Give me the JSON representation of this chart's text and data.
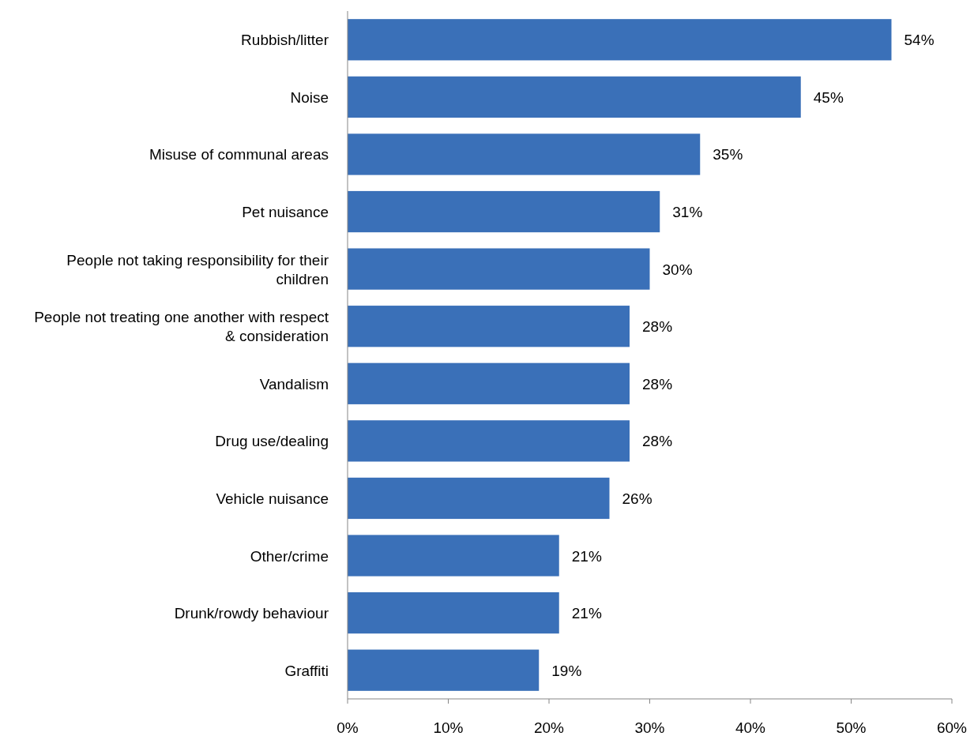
{
  "chart_data": {
    "type": "bar",
    "orientation": "horizontal",
    "categories": [
      "Rubbish/litter",
      "Noise",
      "Misuse of communal areas",
      "Pet nuisance",
      "People not taking responsibility for their children",
      "People not treating one another with respect & consideration",
      "Vandalism",
      "Drug use/dealing",
      "Vehicle nuisance",
      "Other/crime",
      "Drunk/rowdy behaviour",
      "Graffiti"
    ],
    "values": [
      54,
      45,
      35,
      31,
      30,
      28,
      28,
      28,
      26,
      21,
      21,
      19
    ],
    "value_labels": [
      "54%",
      "45%",
      "35%",
      "31%",
      "30%",
      "28%",
      "28%",
      "28%",
      "26%",
      "21%",
      "21%",
      "19%"
    ],
    "color": "#3a70b8",
    "xlim": [
      0,
      60
    ],
    "xticks": [
      {
        "value": 0,
        "label": "0%"
      },
      {
        "value": 10,
        "label": "10%"
      },
      {
        "value": 20,
        "label": "20%"
      },
      {
        "value": 30,
        "label": "30%"
      },
      {
        "value": 40,
        "label": "40%"
      },
      {
        "value": 50,
        "label": "50%"
      },
      {
        "value": 60,
        "label": "60%"
      }
    ],
    "grid": false
  }
}
